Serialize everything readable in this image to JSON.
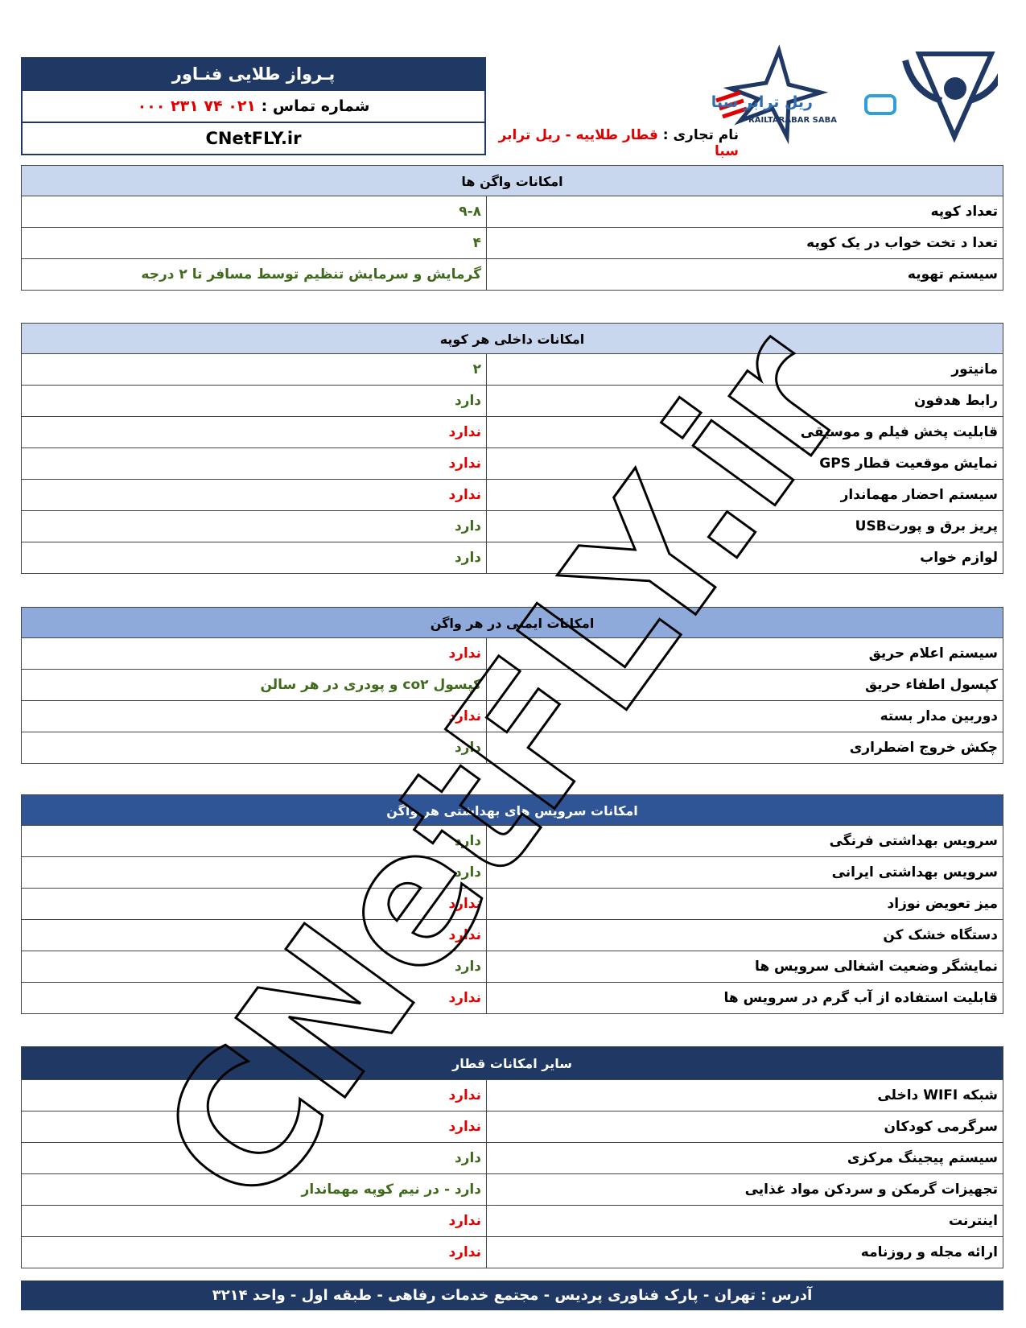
{
  "header": {
    "company": "پـرواز طلایی فنـاور",
    "contact_label": "شماره تماس :",
    "phone": "۰۲۱ ۷۴ ۲۳۱ ۰۰۰",
    "website": "CNetFLY.ir",
    "brand_label": "نام تجاری :",
    "brand_name": "قطار طلاییه - ریل ترابر سبا",
    "logo_fa": "ریل ترابر سبا",
    "logo_en": "RAILTARABAR SABA"
  },
  "watermark": "CNetFLY.ir",
  "sections": [
    {
      "title": "امکانات واگن ها",
      "header_color": "#c9d7ee",
      "title_color": "#000000",
      "rows": [
        {
          "label": "تعداد کوپه",
          "value": "۹-۸",
          "color": "#3f6a1c"
        },
        {
          "label": "تعدا د تخت خواب در یک کوپه",
          "value": "۴",
          "color": "#3f6a1c"
        },
        {
          "label": "سیستم تهویه",
          "value": "گرمایش و سرمایش  تنظیم توسط مسافر تا ۲ درجه",
          "color": "#3f6a1c"
        }
      ]
    },
    {
      "title": "امکانات داخلی هر کوپه",
      "header_color": "#c9d7ee",
      "title_color": "#000000",
      "rows": [
        {
          "label": "مانیتور",
          "value": "۲",
          "color": "#3f6a1c"
        },
        {
          "label": "رابط هدفون",
          "value": "دارد",
          "color": "#3f6a1c"
        },
        {
          "label": "قابلیت پخش فیلم و موسیقی",
          "value": "ندارد",
          "color": "#e00000"
        },
        {
          "label": "نمایش موقعیت قطار GPS",
          "value": "ندارد",
          "color": "#e00000"
        },
        {
          "label": "سیستم احضار مهماندار",
          "value": "ندارد",
          "color": "#e00000"
        },
        {
          "label": "پریز برق  و  پورتUSB",
          "value": "دارد",
          "color": "#3f6a1c"
        },
        {
          "label": "لوازم خواب",
          "value": "دارد",
          "color": "#3f6a1c"
        }
      ]
    },
    {
      "title": "امکانات ایمنی در هر   واگن",
      "header_color": "#8eaadb",
      "title_color": "#000000",
      "rows": [
        {
          "label": "سیستم اعلام حریق",
          "value": "ندارد",
          "color": "#e00000"
        },
        {
          "label": "کپسول اطفاء حریق",
          "value": "کپسول co۲ و پودری  در هر سالن",
          "color": "#3f6a1c"
        },
        {
          "label": "دوربین مدار بسته",
          "value": "ندارد",
          "color": "#e00000"
        },
        {
          "label": "چکش  خروج اضطراری",
          "value": "دارد",
          "color": "#3f6a1c"
        }
      ]
    },
    {
      "title": "امکانات سرویس های بهداشتی هر واگن",
      "header_color": "#2f5597",
      "title_color": "#ffffff",
      "rows": [
        {
          "label": "سرویس بهداشتی  فرنگی",
          "value": "دارد",
          "color": "#3f6a1c"
        },
        {
          "label": "سرویس بهداشتی ایرانی",
          "value": "دارد",
          "color": "#3f6a1c"
        },
        {
          "label": "میز تعویض  نوزاد",
          "value": "ندارد",
          "color": "#e00000"
        },
        {
          "label": "دستگاه خشک کن",
          "value": "ندارد",
          "color": "#e00000"
        },
        {
          "label": "نمایشگر وضعیت  اشغالی سرویس ها",
          "value": "دارد",
          "color": "#3f6a1c"
        },
        {
          "label": "قابلیت استفاده از آب گرم  در سرویس ها",
          "value": "ندارد",
          "color": "#e00000"
        }
      ]
    },
    {
      "title": "سایر امکانات قطار",
      "header_color": "#1f3864",
      "title_color": "#ffffff",
      "rows": [
        {
          "label": "شبکه WIFI داخلی",
          "value": "ندارد",
          "color": "#e00000"
        },
        {
          "label": "سرگرمی کودکان",
          "value": "ندارد",
          "color": "#e00000"
        },
        {
          "label": "سیستم پیجینگ مرکزی",
          "value": "دارد",
          "color": "#3f6a1c"
        },
        {
          "label": "تجهیزات گرمکن و سردکن مواد غذایی",
          "value": "دارد - در نیم کوپه مهماندار",
          "color": "#3f6a1c"
        },
        {
          "label": "اینترنت",
          "value": "ندارد",
          "color": "#e00000"
        },
        {
          "label": "ارائه مجله و  روزنامه",
          "value": "ندارد",
          "color": "#e00000"
        }
      ]
    }
  ],
  "footer": "آدرس :  تهران - پارک فناوری پردیس - مجتمع خدمات رفاهی - طبقه اول - واحد ۳۲۱۴"
}
